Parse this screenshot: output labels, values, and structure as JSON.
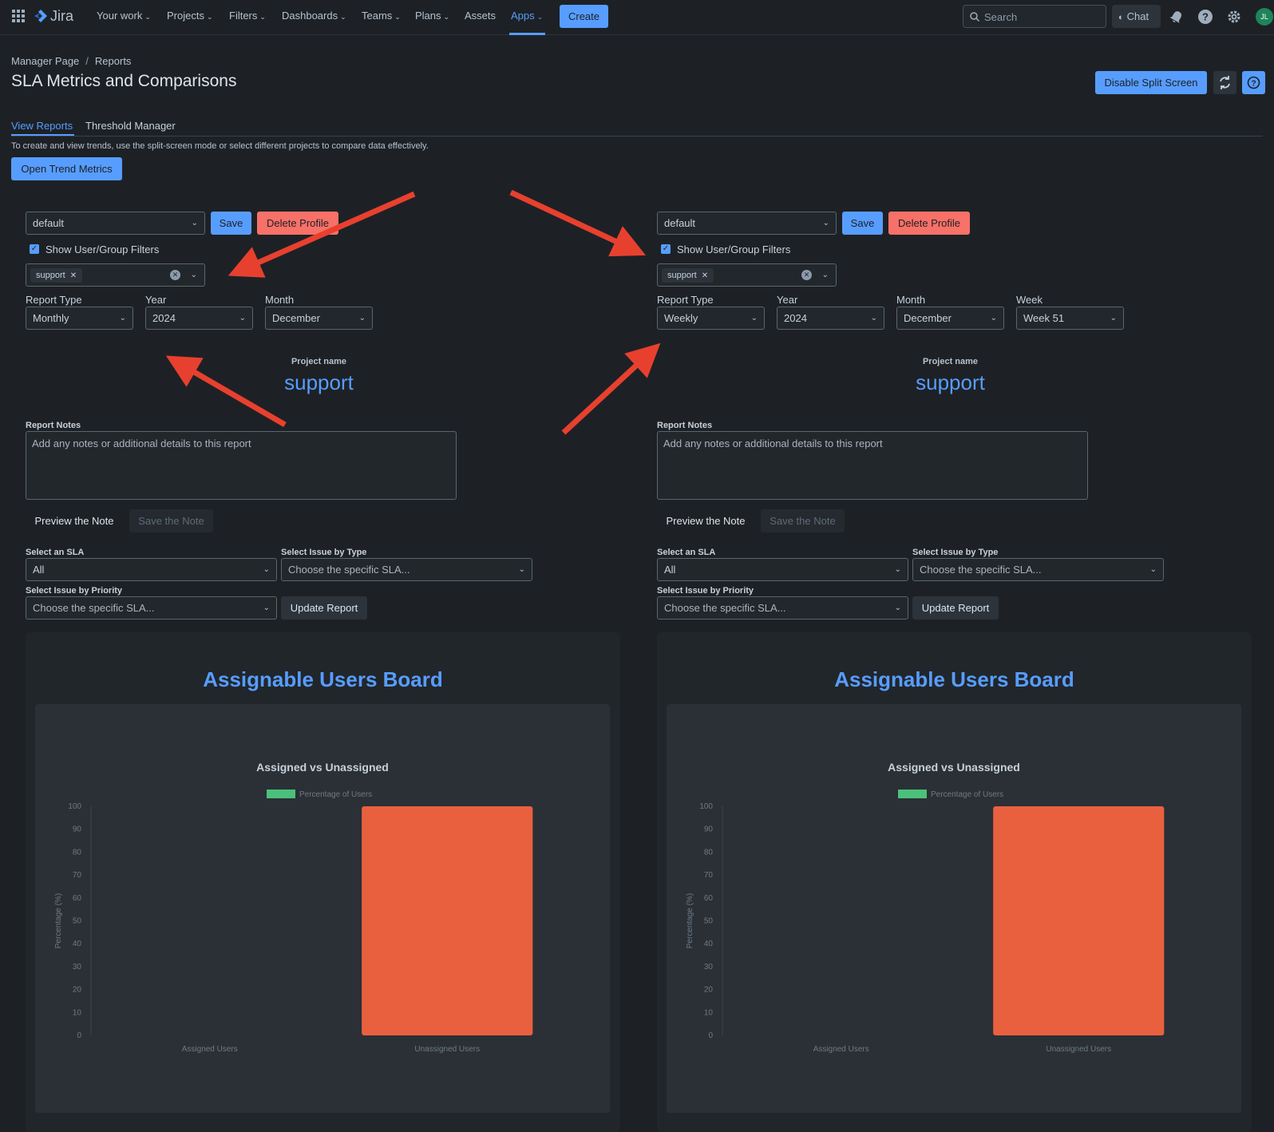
{
  "nav": {
    "logo": "Jira",
    "items": [
      "Your work",
      "Projects",
      "Filters",
      "Dashboards",
      "Teams",
      "Plans",
      "Assets",
      "Apps"
    ],
    "create": "Create",
    "search_placeholder": "Search",
    "chat": "Chat",
    "avatar": "JL"
  },
  "header": {
    "breadcrumb": [
      "Manager Page",
      "Reports"
    ],
    "title": "SLA Metrics and Comparisons",
    "disable_split": "Disable Split Screen"
  },
  "tabs": [
    "View Reports",
    "Threshold Manager"
  ],
  "hint": "To create and view trends, use the split-screen mode or select different projects to compare data effectively.",
  "open_trend": "Open Trend Metrics",
  "panels": [
    {
      "profile": "default",
      "save": "Save",
      "delete": "Delete Profile",
      "show_filters": "Show User/Group Filters",
      "chip": "support",
      "fields": [
        {
          "label": "Report Type",
          "value": "Monthly"
        },
        {
          "label": "Year",
          "value": "2024"
        },
        {
          "label": "Month",
          "value": "December"
        }
      ],
      "project_label": "Project name",
      "project_name": "support",
      "notes_label": "Report Notes",
      "notes_placeholder": "Add any notes or additional details to this report",
      "preview": "Preview the Note",
      "save_note": "Save the Note",
      "sla_label": "Select an SLA",
      "sla_value": "All",
      "type_label": "Select Issue by Type",
      "type_placeholder": "Choose the specific SLA...",
      "priority_label": "Select Issue by Priority",
      "priority_placeholder": "Choose the specific SLA...",
      "update": "Update Report",
      "board_title": "Assignable Users Board"
    },
    {
      "profile": "default",
      "save": "Save",
      "delete": "Delete Profile",
      "show_filters": "Show User/Group Filters",
      "chip": "support",
      "fields": [
        {
          "label": "Report Type",
          "value": "Weekly"
        },
        {
          "label": "Year",
          "value": "2024"
        },
        {
          "label": "Month",
          "value": "December"
        },
        {
          "label": "Week",
          "value": "Week 51"
        }
      ],
      "project_label": "Project name",
      "project_name": "support",
      "notes_label": "Report Notes",
      "notes_placeholder": "Add any notes or additional details to this report",
      "preview": "Preview the Note",
      "save_note": "Save the Note",
      "sla_label": "Select an SLA",
      "sla_value": "All",
      "type_label": "Select Issue by Type",
      "type_placeholder": "Choose the specific SLA...",
      "priority_label": "Select Issue by Priority",
      "priority_placeholder": "Choose the specific SLA...",
      "update": "Update Report",
      "board_title": "Assignable Users Board"
    }
  ],
  "chart_data": [
    {
      "type": "bar",
      "title": "Assigned vs Unassigned",
      "categories": [
        "Assigned Users",
        "Unassigned Users"
      ],
      "series": [
        {
          "name": "Percentage of Users",
          "values": [
            0,
            100
          ]
        }
      ],
      "ylabel": "Percentage (%)",
      "ylim": [
        0,
        100
      ],
      "yticks": [
        0,
        10,
        20,
        30,
        40,
        50,
        60,
        70,
        80,
        90,
        100
      ],
      "legend_color": "#4bc07a",
      "bar_color": "#e9603f",
      "legend": "top"
    },
    {
      "type": "bar",
      "title": "Assigned vs Unassigned",
      "categories": [
        "Assigned Users",
        "Unassigned Users"
      ],
      "series": [
        {
          "name": "Percentage of Users",
          "values": [
            0,
            100
          ]
        }
      ],
      "ylabel": "Percentage (%)",
      "ylim": [
        0,
        100
      ],
      "yticks": [
        0,
        10,
        20,
        30,
        40,
        50,
        60,
        70,
        80,
        90,
        100
      ],
      "legend_color": "#4bc07a",
      "bar_color": "#e9603f",
      "legend": "top"
    }
  ],
  "colors": {
    "accent": "#579dff",
    "danger": "#f87168",
    "annotation_arrow": "#e8402f"
  }
}
